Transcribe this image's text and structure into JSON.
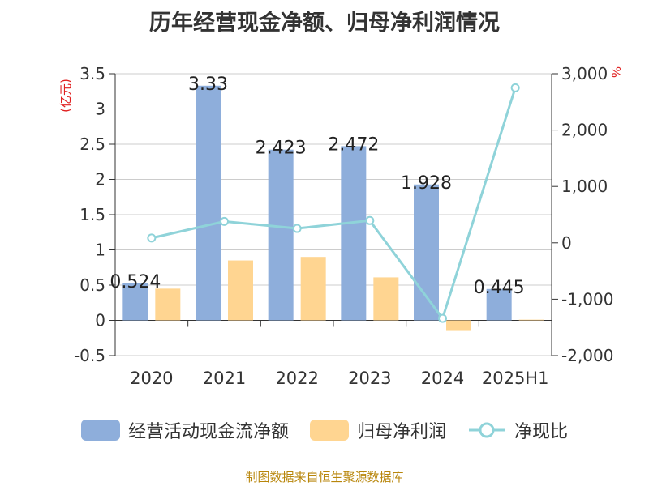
{
  "chart_data": {
    "type": "bar",
    "title": "历年经营现金净额、归母净利润情况",
    "categories": [
      "2020",
      "2021",
      "2022",
      "2023",
      "2024",
      "2025H1"
    ],
    "series": [
      {
        "name": "经营活动现金流净额",
        "type": "bar",
        "axis": "left",
        "color": "#8eaedb",
        "values": [
          0.524,
          3.33,
          2.423,
          2.472,
          1.928,
          0.445
        ],
        "labels": [
          "0.524",
          "3.33",
          "2.423",
          "2.472",
          "1.928",
          "0.445"
        ]
      },
      {
        "name": "归母净利润",
        "type": "bar",
        "axis": "left",
        "color": "#ffd591",
        "values": [
          0.45,
          0.85,
          0.9,
          0.61,
          -0.15,
          0.01
        ]
      },
      {
        "name": "净现比",
        "type": "line",
        "axis": "right",
        "color": "#8fd3d9",
        "values": [
          85,
          380,
          255,
          395,
          -1340,
          2750
        ]
      }
    ],
    "left_axis": {
      "unit": "(亿元)",
      "min": -0.5,
      "max": 3.5,
      "ticks": [
        -0.5,
        0,
        0.5,
        1,
        1.5,
        2,
        2.5,
        3,
        3.5
      ],
      "tick_labels": [
        "-0.5",
        "0",
        "0.5",
        "1",
        "1.5",
        "2",
        "2.5",
        "3",
        "3.5"
      ]
    },
    "right_axis": {
      "unit": "%",
      "min": -2000,
      "max": 3000,
      "ticks": [
        -2000,
        -1000,
        0,
        1000,
        2000,
        3000
      ],
      "tick_labels": [
        "-2,000",
        "-1,000",
        "0",
        "1,000",
        "2,000",
        "3,000"
      ]
    },
    "grid": true,
    "legend_position": "bottom",
    "source": "制图数据来自恒生聚源数据库"
  }
}
